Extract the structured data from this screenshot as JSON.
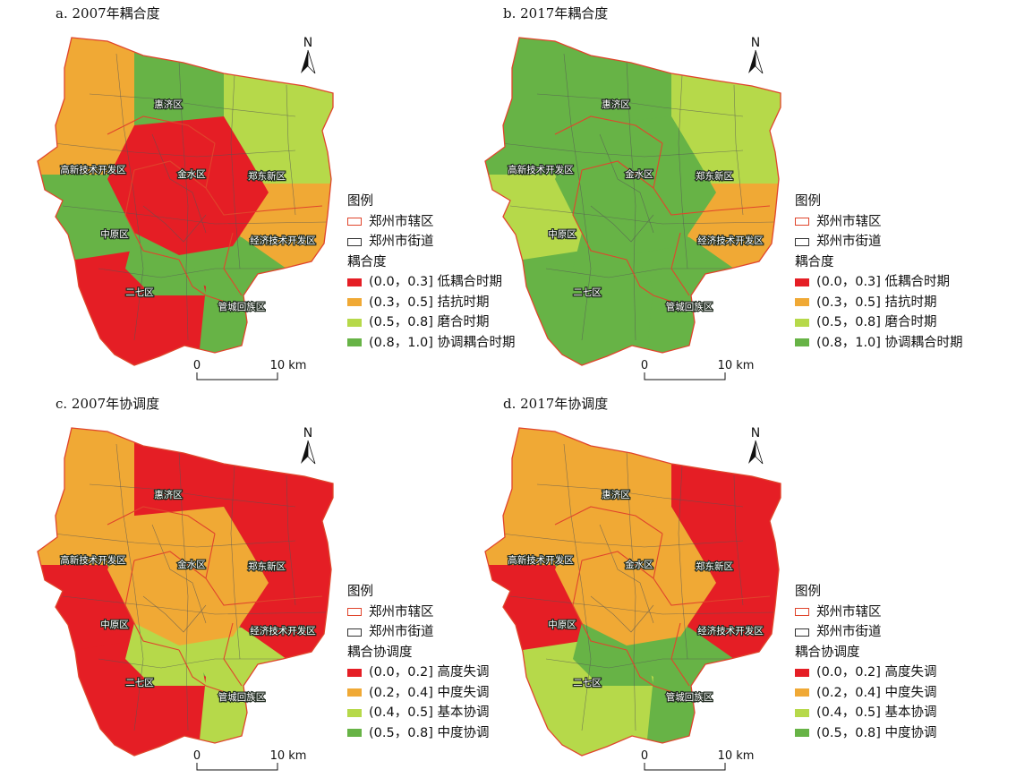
{
  "palettes": {
    "coupling": [
      "#e51e25",
      "#f0a935",
      "#b6d94a",
      "#67b346"
    ],
    "coordination": [
      "#e51e25",
      "#f0a935",
      "#b6d94a",
      "#67b346"
    ]
  },
  "boundary_colors": {
    "district": "#e0452c",
    "street": "#555555"
  },
  "district_labels": [
    "惠济区",
    "高新技术开发区",
    "金水区",
    "郑东新区",
    "中原区",
    "经济技术开发区",
    "二七区",
    "管城回族区"
  ],
  "north_label": "N",
  "scale": {
    "start": "0",
    "end": "10 km"
  },
  "legend_common": {
    "heading": "图例",
    "district_boundary": "郑州市辖区",
    "street_boundary": "郑州市街道"
  },
  "panels": [
    {
      "id": "a",
      "title": "a. 2007年耦合度",
      "legend_title": "耦合度",
      "classes": [
        "(0.0，0.3] 低耦合时期",
        "(0.3，0.5] 拮抗时期",
        "(0.5，0.8] 磨合时期",
        "(0.8，1.0] 协调耦合时期"
      ],
      "zone_classes": {
        "nw": 1,
        "n": 3,
        "ne": 2,
        "w": 3,
        "c": 0,
        "e": 1,
        "sw": 0,
        "s": 3,
        "se": 3
      }
    },
    {
      "id": "b",
      "title": "b. 2017年耦合度",
      "legend_title": "耦合度",
      "classes": [
        "(0.0，0.3] 低耦合时期",
        "(0.3，0.5] 拮抗时期",
        "(0.5，0.8] 磨合时期",
        "(0.8，1.0] 协调耦合时期"
      ],
      "zone_classes": {
        "nw": 3,
        "n": 3,
        "ne": 2,
        "w": 2,
        "c": 3,
        "e": 1,
        "sw": 3,
        "s": 3,
        "se": 3
      }
    },
    {
      "id": "c",
      "title": "c. 2007年协调度",
      "legend_title": "耦合协调度",
      "classes": [
        "(0.0，0.2] 高度失调",
        "(0.2，0.4] 中度失调",
        "(0.4，0.5] 基本协调",
        "(0.5，0.8] 中度协调"
      ],
      "zone_classes": {
        "nw": 1,
        "n": 0,
        "ne": 0,
        "w": 0,
        "c": 1,
        "e": 0,
        "sw": 0,
        "s": 2,
        "se": 2
      }
    },
    {
      "id": "d",
      "title": "d. 2017年协调度",
      "legend_title": "耦合协调度",
      "classes": [
        "(0.0，0.2] 高度失调",
        "(0.2，0.4] 中度失调",
        "(0.4，0.5] 基本协调",
        "(0.5，0.8] 中度协调"
      ],
      "zone_classes": {
        "nw": 1,
        "n": 1,
        "ne": 0,
        "w": 0,
        "c": 1,
        "e": 0,
        "sw": 2,
        "s": 3,
        "se": 3
      }
    }
  ]
}
